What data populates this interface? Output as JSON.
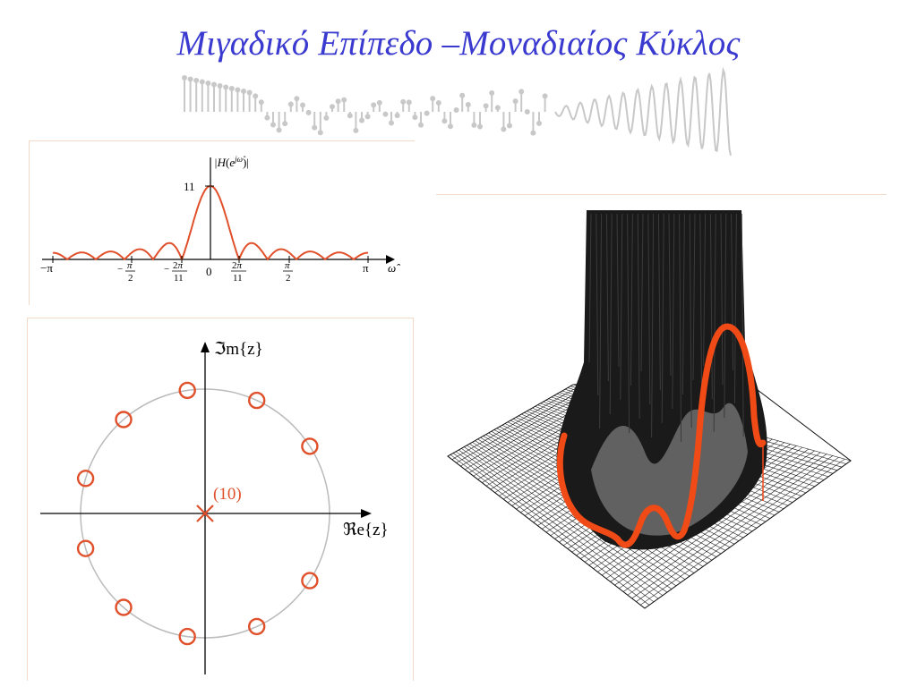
{
  "slide": {
    "title": "Μιγαδικό Επίπεδο –Μοναδιαίος Κύκλος"
  },
  "frequency_plot": {
    "ylabel": "|H(e^{jω̂})|",
    "peak_label": "11",
    "xlabel": "ω̂",
    "ticks": [
      "−π",
      "−π/2",
      "−2π/11",
      "0",
      "2π/11",
      "π/2",
      "π"
    ]
  },
  "zplane": {
    "imag_axis_label": "ℑm{z}",
    "real_axis_label": "ℜe{z}",
    "pole_label": "(10)",
    "zero_count": 10,
    "colors": {
      "marker": "#e0502b",
      "circle": "#bbbbbb",
      "axis": "#000000"
    }
  },
  "surface_plot": {
    "colors": {
      "curve": "#f04a16",
      "mesh": "#111111"
    }
  },
  "colors": {
    "title": "#3a3ad0",
    "accent": "#e0502b",
    "divider": "#f3d9c8"
  }
}
